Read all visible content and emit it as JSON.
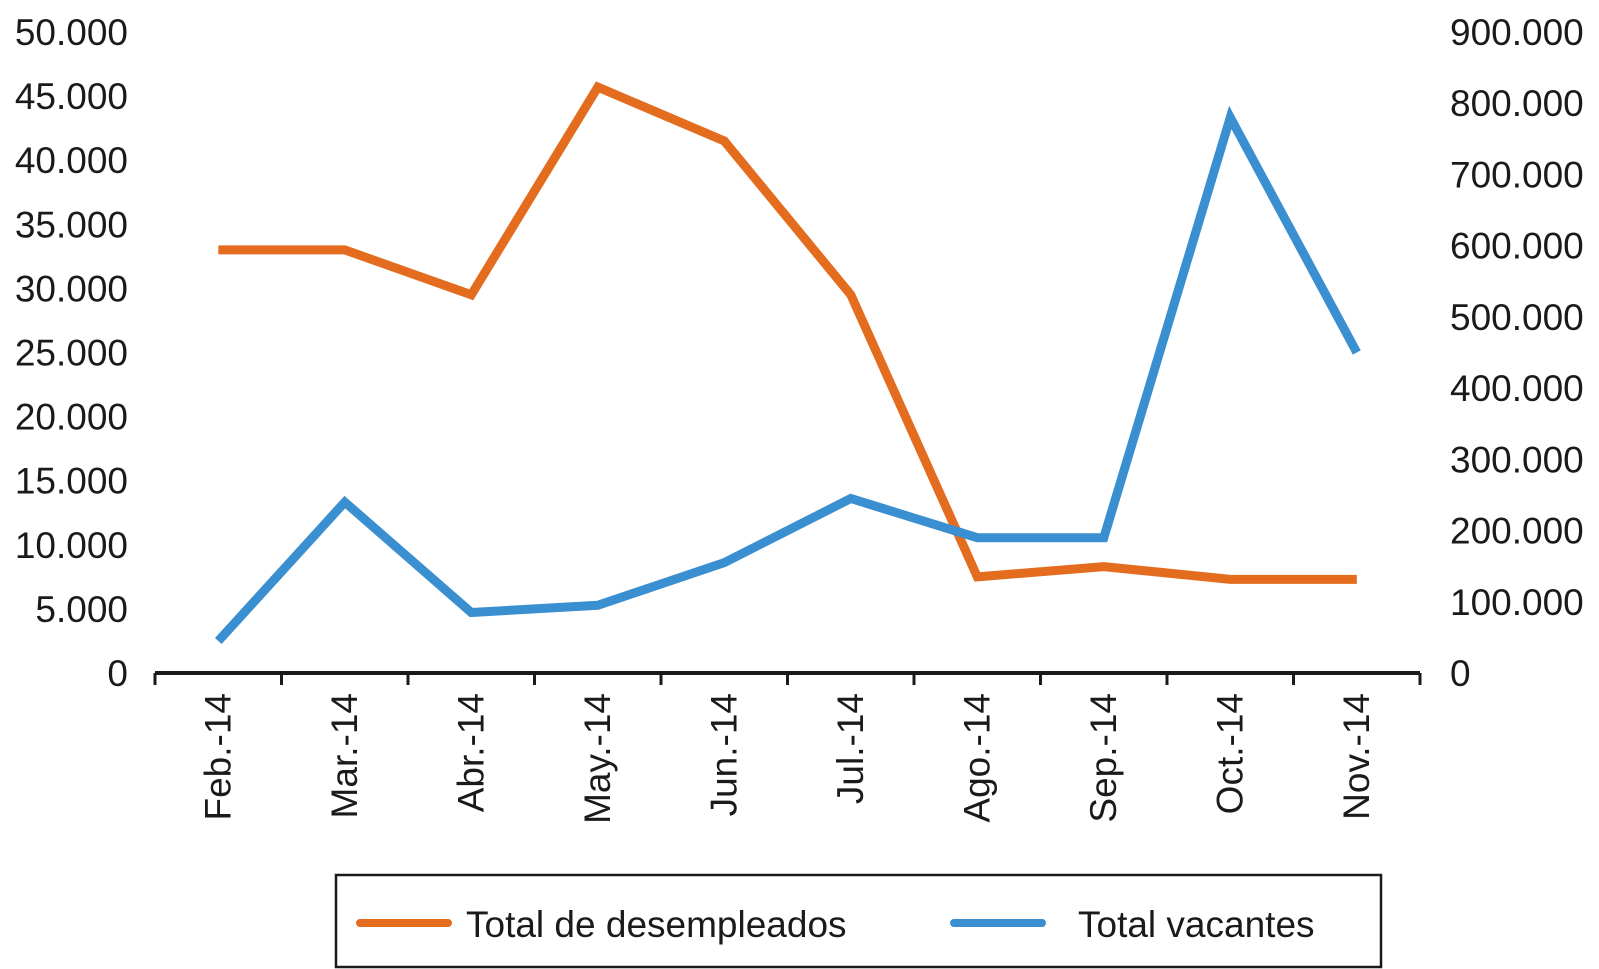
{
  "chart_data": {
    "type": "line",
    "title": "",
    "xlabel": "",
    "categories": [
      "Feb.-14",
      "Mar.-14",
      "Abr.-14",
      "May.-14",
      "Jun.-14",
      "Jul.-14",
      "Ago.-14",
      "Sep.-14",
      "Oct.-14",
      "Nov.-14"
    ],
    "y_left": {
      "label": "",
      "ylim": [
        0,
        50000
      ],
      "ticks": [
        0,
        5000,
        10000,
        15000,
        20000,
        25000,
        30000,
        35000,
        40000,
        45000,
        50000
      ],
      "tick_labels": [
        "0",
        "5.000",
        "10.000",
        "15.000",
        "20.000",
        "25.000",
        "30.000",
        "35.000",
        "40.000",
        "45.000",
        "50.000"
      ]
    },
    "y_right": {
      "label": "",
      "ylim": [
        0,
        900000
      ],
      "ticks": [
        0,
        100000,
        200000,
        300000,
        400000,
        500000,
        600000,
        700000,
        800000,
        900000
      ],
      "tick_labels": [
        "0",
        "100.000",
        "200.000",
        "300.000",
        "400.000",
        "500.000",
        "600.000",
        "700.000",
        "800.000",
        "900.000"
      ]
    },
    "series": [
      {
        "name": "Total de desempleados",
        "axis": "left",
        "color": "#e36c1e",
        "values": [
          33000,
          33000,
          29500,
          45700,
          41500,
          29500,
          7500,
          8300,
          7300,
          7300
        ]
      },
      {
        "name": "Total vacantes",
        "axis": "right",
        "color": "#3a8fd1",
        "values": [
          45000,
          240000,
          85000,
          95000,
          155000,
          245000,
          190000,
          190000,
          780000,
          450000
        ]
      }
    ],
    "legend_position": "bottom",
    "grid": false
  }
}
